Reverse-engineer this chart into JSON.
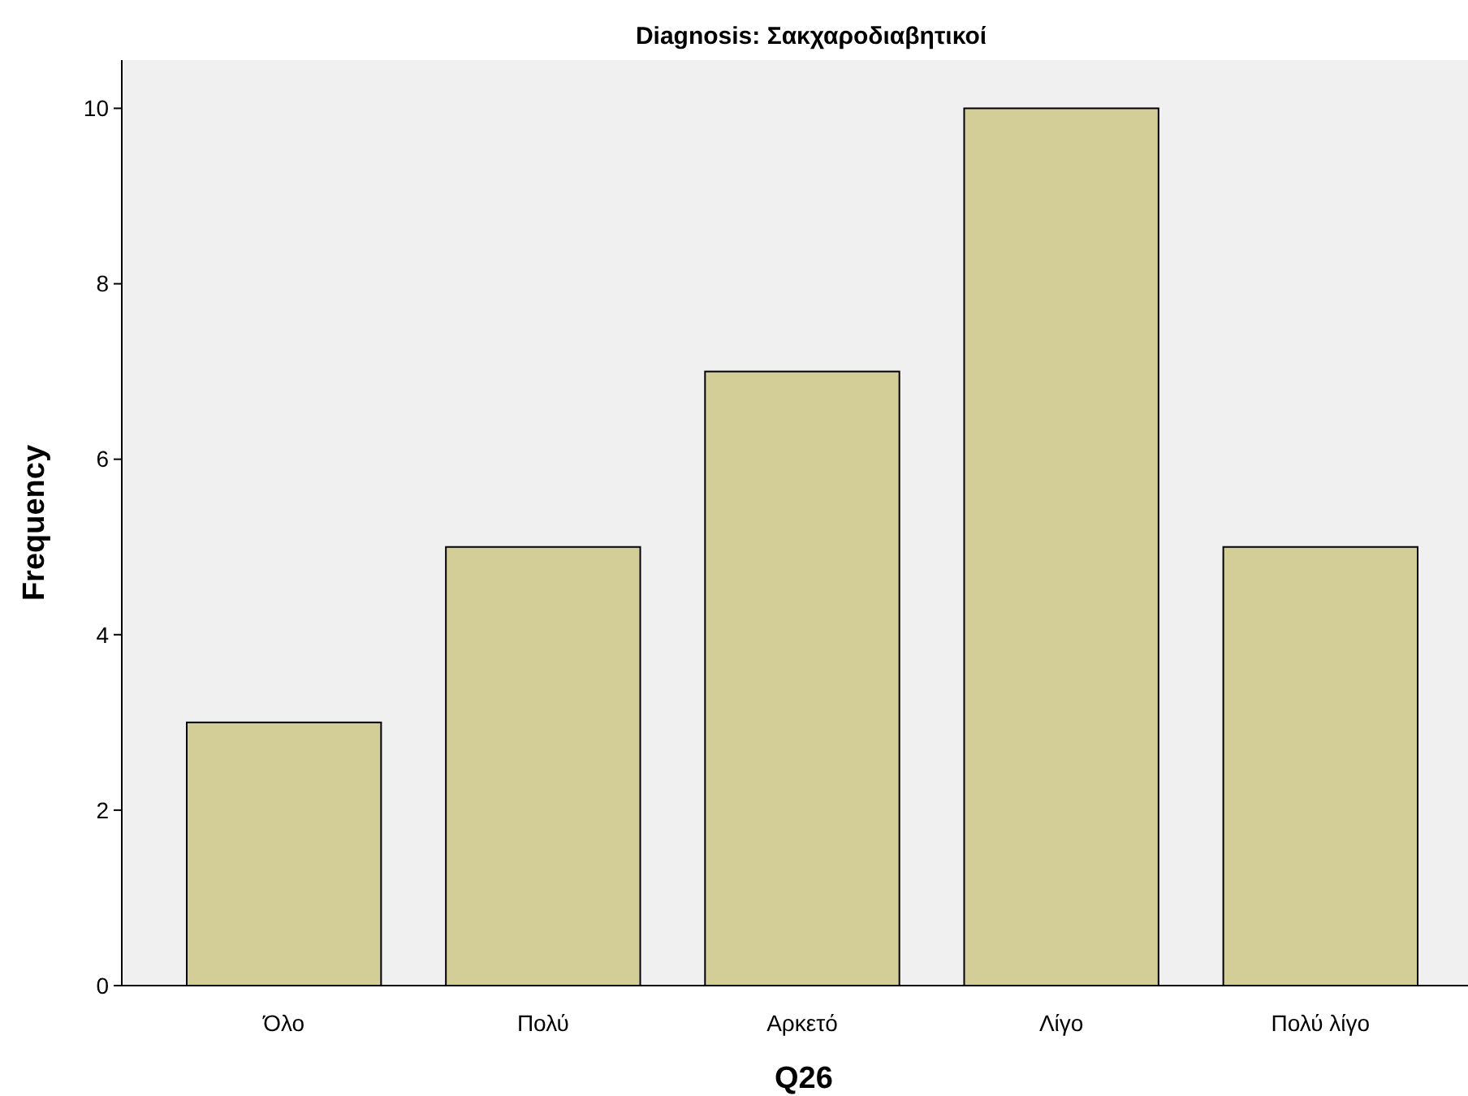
{
  "chart_data": {
    "type": "bar",
    "title": "Diagnosis: Σακχαροδιαβητικοί",
    "xlabel": "Q26",
    "ylabel": "Frequency",
    "categories": [
      "Όλο",
      "Πολύ",
      "Αρκετό",
      "Λίγο",
      "Πολύ λίγο"
    ],
    "values": [
      3,
      5,
      7,
      10,
      5
    ],
    "color": "#d3ce97",
    "ylim": [
      0,
      10.55
    ],
    "yticks": [
      0,
      2,
      4,
      6,
      8,
      10
    ],
    "grid": false
  }
}
